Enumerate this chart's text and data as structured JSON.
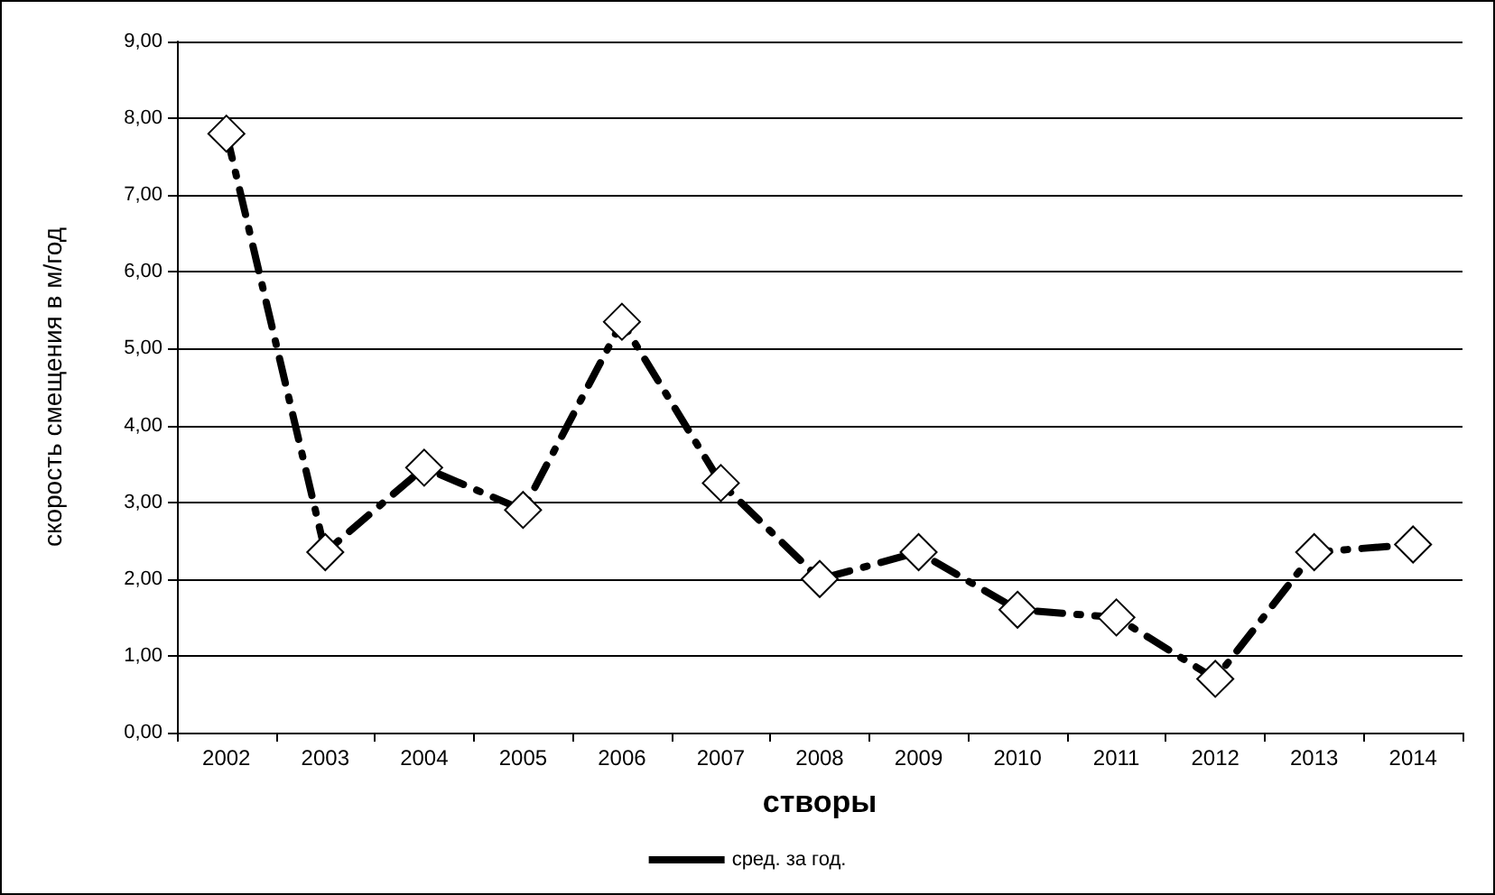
{
  "chart_data": {
    "type": "line",
    "xlabel": "створы",
    "ylabel": "скорость смещения в м/год",
    "categories": [
      "2002",
      "2003",
      "2004",
      "2005",
      "2006",
      "2007",
      "2008",
      "2009",
      "2010",
      "2011",
      "2012",
      "2013",
      "2014"
    ],
    "series": [
      {
        "name": "сред. за год.",
        "color": "#000000",
        "values": [
          7.8,
          2.35,
          3.45,
          2.9,
          5.35,
          3.25,
          2.0,
          2.35,
          1.6,
          1.5,
          0.7,
          2.35,
          2.45
        ]
      }
    ],
    "ylim": [
      0,
      9
    ],
    "yticks": [
      {
        "value": 0,
        "label": "0,00"
      },
      {
        "value": 1,
        "label": "1,00"
      },
      {
        "value": 2,
        "label": "2,00"
      },
      {
        "value": 3,
        "label": "3,00"
      },
      {
        "value": 4,
        "label": "4,00"
      },
      {
        "value": 5,
        "label": "5,00"
      },
      {
        "value": 6,
        "label": "6,00"
      },
      {
        "value": 7,
        "label": "7,00"
      },
      {
        "value": 8,
        "label": "8,00"
      },
      {
        "value": 9,
        "label": "9,00"
      }
    ],
    "grid": "y",
    "legend": "bottom",
    "marker": "diamond",
    "line_style": "dashed"
  }
}
